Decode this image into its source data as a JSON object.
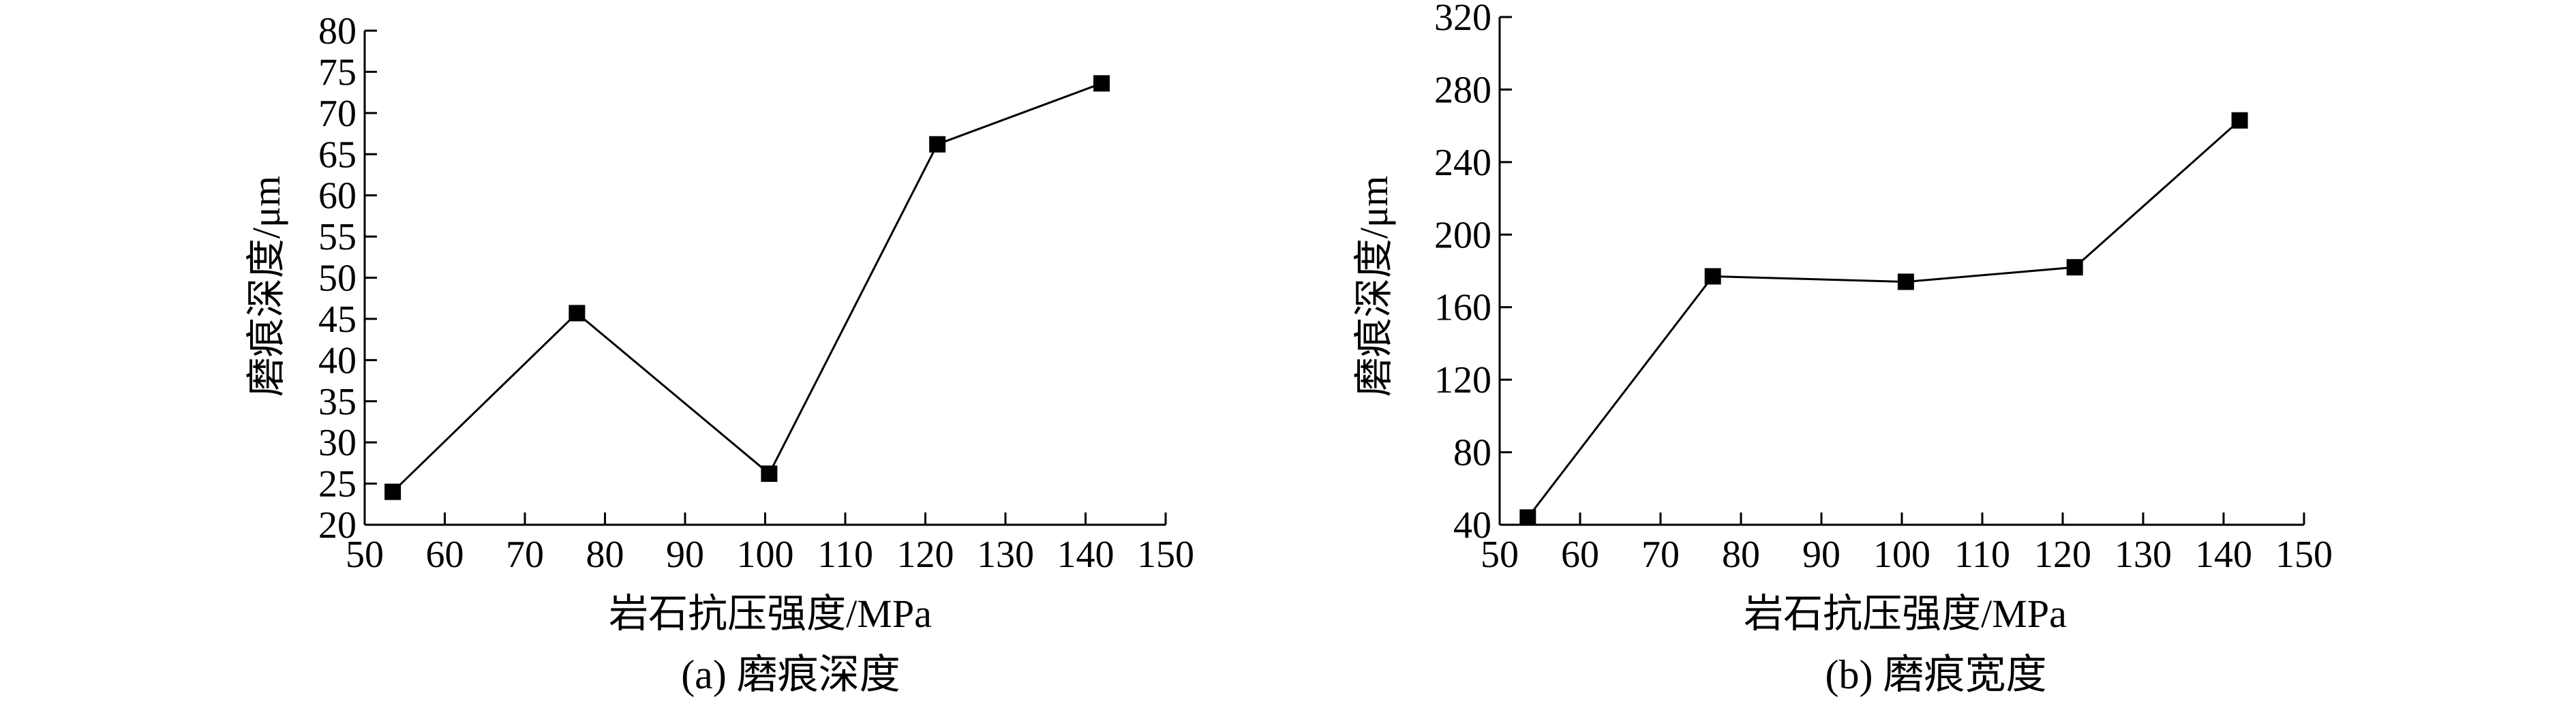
{
  "chart_data": [
    {
      "type": "line",
      "caption": "(a) 磨痕深度",
      "xlabel": "岩石抗压强度/MPa",
      "ylabel": "磨痕深度/μm",
      "xlim": [
        50,
        150
      ],
      "ylim": [
        20,
        80
      ],
      "xticks": [
        50,
        60,
        70,
        80,
        90,
        100,
        110,
        120,
        130,
        140,
        150
      ],
      "yticks": [
        20,
        25,
        30,
        35,
        40,
        45,
        50,
        55,
        60,
        65,
        70,
        75,
        80
      ],
      "grid": false,
      "marker": "square",
      "x": [
        53.5,
        76.5,
        100.5,
        121.5,
        142
      ],
      "y": [
        24,
        45.7,
        26.2,
        66.2,
        73.6
      ]
    },
    {
      "type": "line",
      "caption": "(b) 磨痕宽度",
      "xlabel": "岩石抗压强度/MPa",
      "ylabel": "磨痕深度/μm",
      "xlim": [
        50,
        150
      ],
      "ylim": [
        40,
        320
      ],
      "xticks": [
        50,
        60,
        70,
        80,
        90,
        100,
        110,
        120,
        130,
        140,
        150
      ],
      "yticks": [
        40,
        80,
        120,
        160,
        200,
        240,
        280,
        320
      ],
      "grid": false,
      "marker": "square",
      "x": [
        53.5,
        76.5,
        100.5,
        121.5,
        142
      ],
      "y": [
        44,
        177,
        174,
        182,
        263
      ]
    }
  ]
}
